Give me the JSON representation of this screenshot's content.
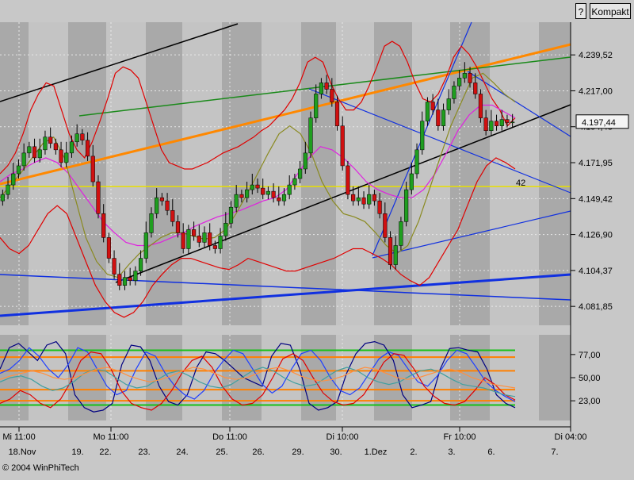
{
  "toolbar": {
    "help_label": "?",
    "compact_label": "Kompakt"
  },
  "colors": {
    "band_dark": "#a9a9a9",
    "band_light": "#c4c4c4",
    "bull": "#1f9e1f",
    "bear": "#d01010",
    "bollinger": "#e00000",
    "ma_fast": "#e020e0",
    "ma_slow": "#8a8a20",
    "trend_orange": "#ff8800",
    "trend_green": "#1a8a1a",
    "trend_blue": "#1030e0",
    "trend_black": "#000000",
    "level_yellow": "#e8e000"
  },
  "chart_data": [
    {
      "type": "candlestick",
      "ylim": [
        4070,
        4260
      ],
      "yticks": [
        "4.239,52",
        "4.217,00",
        "4.194,48",
        "4.171,95",
        "4.149,42",
        "4.126,90",
        "4.104,37",
        "4.081,85"
      ],
      "ytick_values": [
        4239.52,
        4217.0,
        4194.48,
        4171.95,
        4149.42,
        4126.9,
        4104.37,
        4081.85
      ],
      "last_price_label": "4.197,44",
      "last_price": 4197.44,
      "annotation": "42",
      "x_top_labels": [
        "Mi 11:00",
        "Mo 11:00",
        "Do 11:00",
        "Di 10:00",
        "Fr 10:00",
        "Di 04:00"
      ],
      "x_bottom_labels": [
        "18.Nov",
        "19.",
        "22.",
        "23.",
        "24.",
        "25.",
        "26.",
        "29.",
        "30.",
        "1.Dez",
        "2.",
        "3.",
        "6.",
        "7."
      ],
      "closes": [
        4152,
        4158,
        4165,
        4170,
        4178,
        4182,
        4175,
        4180,
        4188,
        4184,
        4180,
        4172,
        4178,
        4185,
        4190,
        4186,
        4176,
        4160,
        4140,
        4125,
        4112,
        4102,
        4095,
        4100,
        4098,
        4104,
        4112,
        4128,
        4140,
        4150,
        4148,
        4142,
        4135,
        4128,
        4118,
        4130,
        4126,
        4122,
        4128,
        4120,
        4118,
        4126,
        4134,
        4144,
        4152,
        4150,
        4155,
        4158,
        4156,
        4152,
        4154,
        4150,
        4148,
        4152,
        4158,
        4162,
        4168,
        4178,
        4200,
        4215,
        4222,
        4218,
        4210,
        4195,
        4170,
        4152,
        4148,
        4150,
        4146,
        4152,
        4148,
        4140,
        4125,
        4108,
        4120,
        4135,
        4155,
        4165,
        4180,
        4198,
        4210,
        4205,
        4195,
        4205,
        4212,
        4220,
        4225,
        4228,
        4222,
        4215,
        4200,
        4192,
        4198,
        4195,
        4199,
        4197,
        4197.44
      ],
      "series": [
        {
          "name": "",
          "kind": "bollinger_upper",
          "values": [
            4165,
            4170,
            4178,
            4190,
            4205,
            4215,
            4222,
            4220,
            4205,
            4190,
            4180,
            4175,
            4185,
            4198,
            4212,
            4228,
            4232,
            4230,
            4225,
            4210,
            4195,
            4180,
            4172,
            4170,
            4168,
            4168,
            4170,
            4172,
            4175,
            4178,
            4180,
            4182,
            4185,
            4188,
            4192,
            4195,
            4200,
            4205,
            4212,
            4222,
            4235,
            4238,
            4235,
            4222,
            4212,
            4205,
            4205,
            4210,
            4220,
            4232,
            4245,
            4248,
            4245,
            4235,
            4222,
            4212,
            4210,
            4215,
            4225,
            4238,
            4245,
            4240,
            4232,
            4222,
            4212,
            4205,
            4195,
            4200
          ]
        },
        {
          "name": "",
          "kind": "bollinger_lower",
          "values": [
            4125,
            4118,
            4115,
            4120,
            4130,
            4140,
            4145,
            4140,
            4125,
            4110,
            4095,
            4085,
            4078,
            4075,
            4078,
            4085,
            4095,
            4102,
            4108,
            4112,
            4112,
            4110,
            4108,
            4106,
            4105,
            4108,
            4112,
            4110,
            4108,
            4106,
            4104,
            4104,
            4106,
            4108,
            4110,
            4112,
            4115,
            4118,
            4118,
            4115,
            4112,
            4108,
            4102,
            4098,
            4095,
            4100,
            4110,
            4120,
            4130,
            4145,
            4160,
            4170,
            4175,
            4172,
            4168
          ]
        },
        {
          "name": "",
          "kind": "ma_fast",
          "values": [
            4160,
            4165,
            4168,
            4172,
            4175,
            4172,
            4165,
            4155,
            4145,
            4135,
            4128,
            4122,
            4120,
            4120,
            4122,
            4125,
            4128,
            4132,
            4135,
            4138,
            4140,
            4142,
            4145,
            4148,
            4150,
            4155,
            4165,
            4175,
            4182,
            4180,
            4175,
            4168,
            4160,
            4155,
            4152,
            4150,
            4150,
            4155,
            4165,
            4178,
            4192,
            4202,
            4208,
            4208,
            4204,
            4200
          ]
        },
        {
          "name": "",
          "kind": "ma_slow",
          "values": [
            4150,
            4158,
            4166,
            4175,
            4184,
            4188,
            4175,
            4150,
            4125,
            4110,
            4102,
            4100,
            4108,
            4115,
            4120,
            4125,
            4128,
            4128,
            4126,
            4124,
            4125,
            4130,
            4140,
            4152,
            4165,
            4178,
            4190,
            4195,
            4190,
            4178,
            4160,
            4148,
            4140,
            4138,
            4135,
            4128,
            4120,
            4115,
            4120,
            4135,
            4155,
            4175,
            4195,
            4210,
            4225,
            4228,
            4222,
            4215,
            4210
          ]
        }
      ],
      "horizontal_level": 4157
    },
    {
      "type": "line",
      "ylim": [
        0,
        100
      ],
      "yticks": [
        "77,00",
        "50,00",
        "23,00"
      ],
      "ytick_values": [
        77,
        50,
        23
      ],
      "reference_lines": [
        {
          "value": 82,
          "color": "#18c018"
        },
        {
          "value": 74,
          "color": "#ff8000"
        },
        {
          "value": 23,
          "color": "#ff8000"
        },
        {
          "value": 18,
          "color": "#18c018"
        },
        {
          "value": 36,
          "color": "#ff8000"
        },
        {
          "value": 58,
          "color": "#ff8000"
        }
      ],
      "series": [
        {
          "name": "",
          "color": "#000080",
          "values": [
            60,
            85,
            90,
            80,
            70,
            88,
            92,
            78,
            30,
            15,
            10,
            12,
            20,
            65,
            88,
            86,
            70,
            40,
            22,
            18,
            30,
            62,
            80,
            78,
            70,
            60,
            50,
            45,
            40,
            75,
            90,
            88,
            60,
            20,
            12,
            15,
            22,
            55,
            78,
            90,
            92,
            88,
            70,
            30,
            15,
            18,
            22,
            60,
            84,
            85,
            82,
            80,
            60,
            30,
            20,
            15
          ]
        },
        {
          "name": "",
          "color": "#2040ff",
          "values": [
            55,
            60,
            70,
            85,
            75,
            60,
            50,
            65,
            85,
            80,
            60,
            40,
            30,
            35,
            60,
            80,
            75,
            55,
            40,
            30,
            25,
            35,
            55,
            70,
            82,
            78,
            60,
            42,
            32,
            40,
            60,
            78,
            82,
            70,
            50,
            35,
            30,
            38,
            55,
            72,
            80,
            76,
            60,
            45,
            40,
            52,
            70,
            82,
            78,
            62,
            45,
            35,
            28,
            22
          ]
        },
        {
          "name": "",
          "color": "#e00000",
          "values": [
            20,
            25,
            35,
            30,
            20,
            15,
            25,
            45,
            70,
            80,
            78,
            60,
            35,
            20,
            15,
            12,
            20,
            35,
            55,
            70,
            75,
            62,
            40,
            25,
            18,
            20,
            30,
            50,
            72,
            78,
            70,
            50,
            32,
            22,
            18,
            20,
            30,
            48,
            68,
            78,
            76,
            60,
            40,
            28,
            20,
            18,
            22,
            35,
            50,
            42,
            30,
            24
          ]
        },
        {
          "name": "",
          "color": "#40a0a0",
          "values": [
            45,
            50,
            52,
            48,
            40,
            35,
            38,
            45,
            55,
            60,
            58,
            50,
            42,
            38,
            40,
            48,
            55,
            58,
            52,
            45,
            40,
            38,
            42,
            50,
            58,
            62,
            58,
            50,
            44,
            40,
            42,
            50,
            58,
            62,
            58,
            50,
            45,
            42,
            45,
            52,
            58,
            60,
            55,
            48,
            42,
            40,
            38,
            34,
            30,
            28
          ]
        },
        {
          "name": "",
          "color": "#ff9040",
          "values": [
            48,
            52,
            55,
            58,
            55,
            50,
            48,
            50,
            55,
            60,
            62,
            58,
            52,
            48,
            45,
            48,
            52,
            58,
            62,
            60,
            55,
            50,
            48,
            50,
            55,
            60,
            62,
            58,
            52,
            48,
            46,
            48,
            52,
            58,
            62,
            60,
            55,
            50,
            48,
            50,
            54,
            58,
            60,
            56,
            50,
            46,
            42,
            40,
            38
          ]
        }
      ]
    }
  ]
}
